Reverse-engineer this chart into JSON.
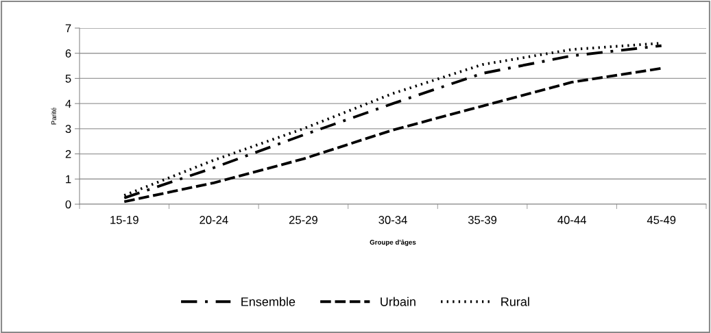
{
  "chart_data": {
    "type": "line",
    "xlabel": "Groupe d'âges",
    "ylabel": "Parité",
    "categories": [
      "15-19",
      "20-24",
      "25-29",
      "30-34",
      "35-39",
      "40-44",
      "45-49"
    ],
    "series": [
      {
        "name": "Ensemble",
        "color": "#000000",
        "line_style": "dashdot",
        "values": [
          0.25,
          1.45,
          2.75,
          4.0,
          5.2,
          5.9,
          6.3
        ]
      },
      {
        "name": "Urbain",
        "color": "#000000",
        "line_style": "dashed",
        "values": [
          0.1,
          0.85,
          1.8,
          2.95,
          3.9,
          4.85,
          5.4
        ]
      },
      {
        "name": "Rural",
        "color": "#000000",
        "line_style": "dotted",
        "values": [
          0.35,
          1.75,
          3.0,
          4.4,
          5.55,
          6.15,
          6.4
        ]
      }
    ],
    "ylim": [
      0,
      7
    ],
    "yticks": [
      0,
      1,
      2,
      3,
      4,
      5,
      6,
      7
    ],
    "grid": "y",
    "legend": "bottom"
  }
}
